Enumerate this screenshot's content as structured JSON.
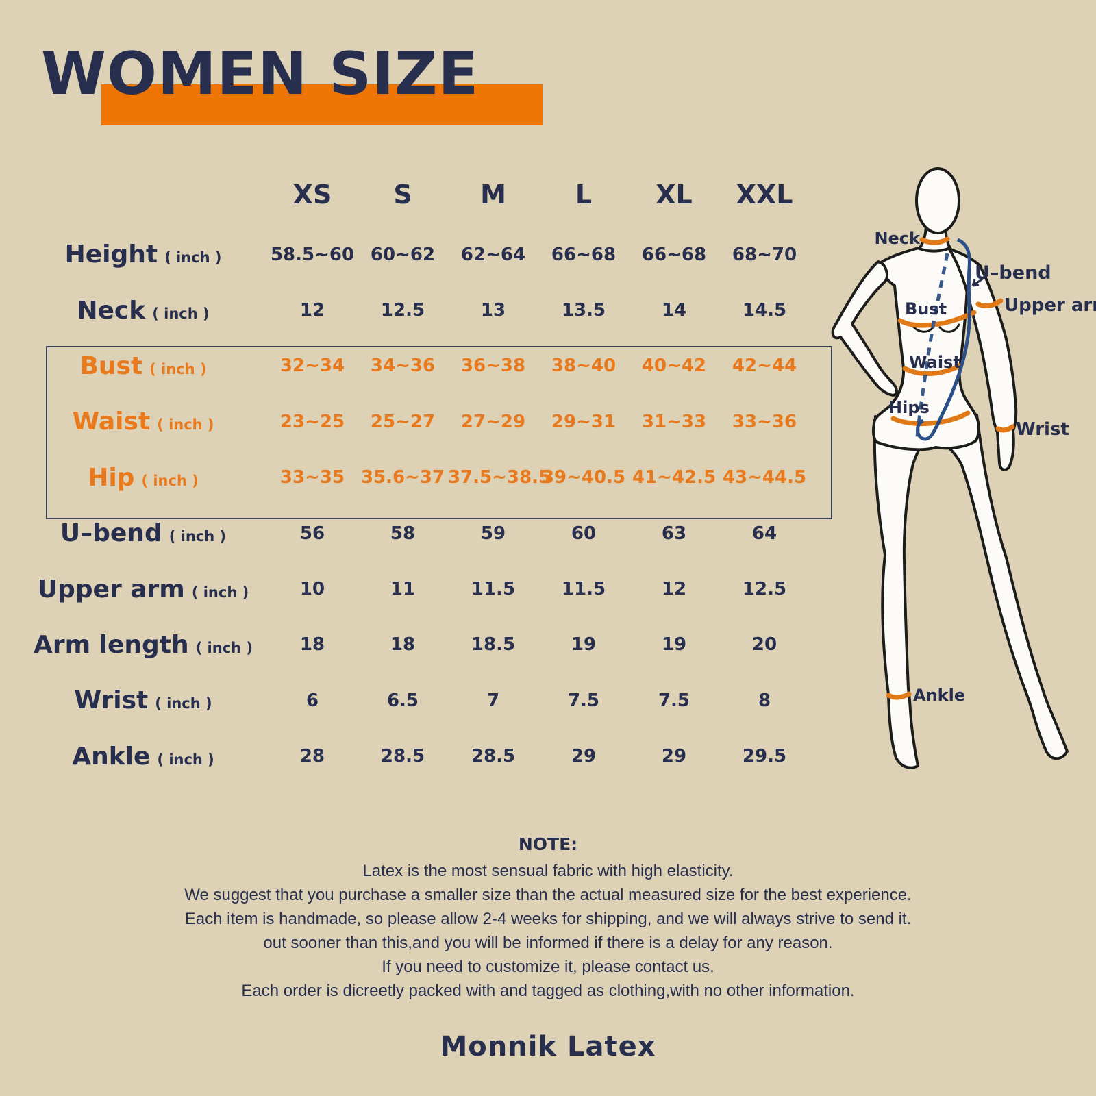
{
  "title": "WOMEN SIZE",
  "brand": "Monnik Latex",
  "colors": {
    "background": "#ddd2b6",
    "navy": "#272e4e",
    "orange_bar": "#ee7503",
    "orange_text": "#e8791d",
    "band_orange": "#e07a18",
    "measure_blue": "#2c4f88"
  },
  "table": {
    "unit": "( inch )",
    "sizes": [
      "XS",
      "S",
      "M",
      "L",
      "XL",
      "XXL"
    ],
    "rows": [
      {
        "key": "height",
        "label": "Height",
        "highlight": false,
        "values": [
          "58.5~60",
          "60~62",
          "62~64",
          "66~68",
          "66~68",
          "68~70"
        ]
      },
      {
        "key": "neck",
        "label": "Neck",
        "highlight": false,
        "values": [
          "12",
          "12.5",
          "13",
          "13.5",
          "14",
          "14.5"
        ]
      },
      {
        "key": "bust",
        "label": "Bust",
        "highlight": true,
        "values": [
          "32~34",
          "34~36",
          "36~38",
          "38~40",
          "40~42",
          "42~44"
        ]
      },
      {
        "key": "waist",
        "label": "Waist",
        "highlight": true,
        "values": [
          "23~25",
          "25~27",
          "27~29",
          "29~31",
          "31~33",
          "33~36"
        ]
      },
      {
        "key": "hip",
        "label": "Hip",
        "highlight": true,
        "values": [
          "33~35",
          "35.6~37",
          "37.5~38.5",
          "39~40.5",
          "41~42.5",
          "43~44.5"
        ]
      },
      {
        "key": "u-bend",
        "label": "U–bend",
        "highlight": false,
        "values": [
          "56",
          "58",
          "59",
          "60",
          "63",
          "64"
        ]
      },
      {
        "key": "upper-arm",
        "label": "Upper arm",
        "highlight": false,
        "values": [
          "10",
          "11",
          "11.5",
          "11.5",
          "12",
          "12.5"
        ]
      },
      {
        "key": "arm-length",
        "label": "Arm length",
        "highlight": false,
        "values": [
          "18",
          "18",
          "18.5",
          "19",
          "19",
          "20"
        ]
      },
      {
        "key": "wrist",
        "label": "Wrist",
        "highlight": false,
        "values": [
          "6",
          "6.5",
          "7",
          "7.5",
          "7.5",
          "8"
        ]
      },
      {
        "key": "ankle",
        "label": "Ankle",
        "highlight": false,
        "values": [
          "28",
          "28.5",
          "28.5",
          "29",
          "29",
          "29.5"
        ]
      }
    ]
  },
  "figure": {
    "labels": {
      "neck": "Neck",
      "ubend": "U–bend",
      "upper_arm": "Upper arm",
      "bust": "Bust",
      "waist": "Waist",
      "hips": "Hips",
      "wrist": "Wrist",
      "ankle": "Ankle"
    }
  },
  "note": {
    "heading": "NOTE:",
    "lines": [
      "Latex is the most sensual fabric with high elasticity.",
      "We suggest that you purchase a smaller size than the actual measured size for the best experience.",
      "Each item is handmade, so please allow 2-4 weeks for shipping, and we will always strive to send it.",
      "out sooner than this,and you will be informed if there is a delay for any reason.",
      "If you need to customize it, please contact us.",
      "Each order is dicreetly packed with and tagged as clothing,with no other information."
    ]
  }
}
